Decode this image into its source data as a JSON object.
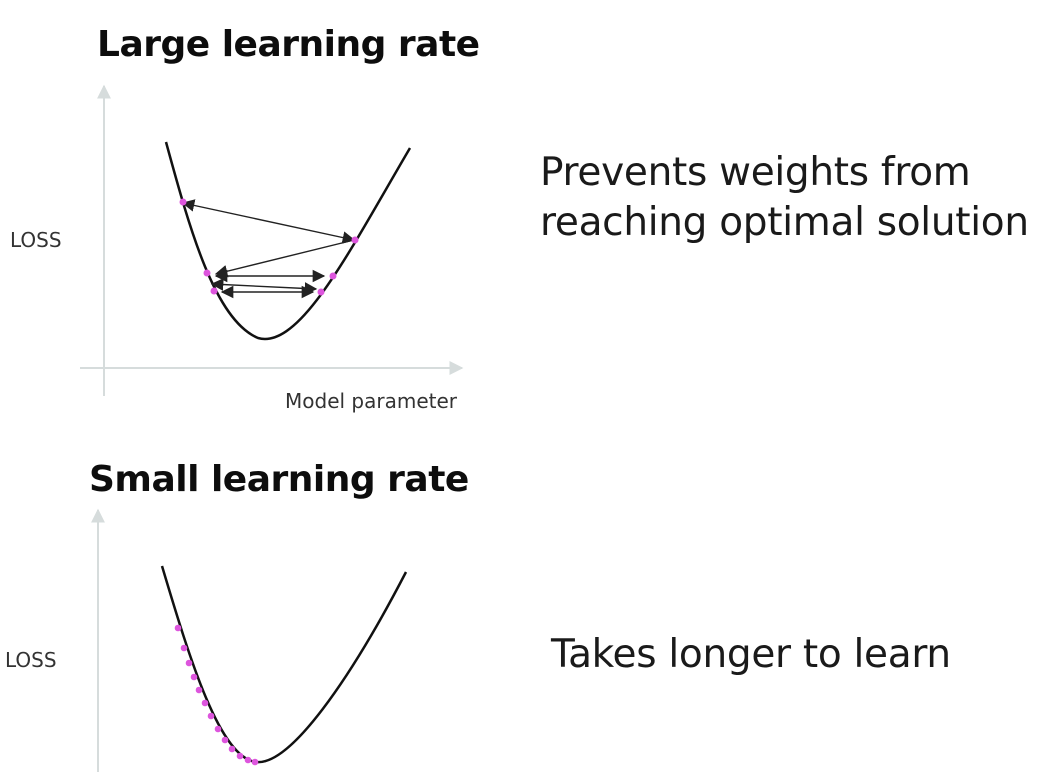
{
  "large_lr": {
    "title": "Large learning rate",
    "y_label": "LOSS",
    "x_label": "Model parameter",
    "description_line1": "Prevents weights from",
    "description_line2": "reaching optimal solution"
  },
  "small_lr": {
    "title": "Small learning rate",
    "y_label": "LOSS",
    "description": "Takes longer to learn"
  },
  "colors": {
    "curve": "#111111",
    "axis": "#d6dcdc",
    "point": "#dd55dd",
    "arrow": "#222222"
  }
}
